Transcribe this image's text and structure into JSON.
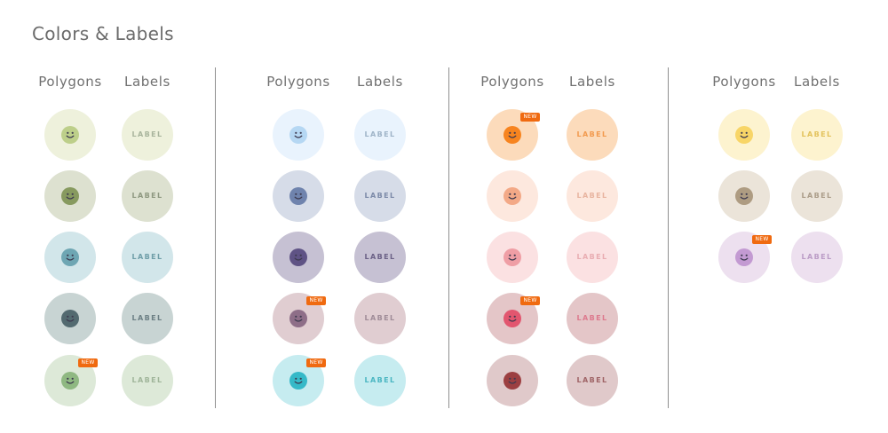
{
  "header": {
    "title": "Colors & Labels"
  },
  "headings": {
    "polygons": "Polygons",
    "labels": "Labels"
  },
  "label_text": "LABEL",
  "badge_text": "NEW",
  "icon": "smiley-face-icon",
  "groups": [
    {
      "rows": [
        {
          "bg": "#eef1dc",
          "fg": "#bdcf8a",
          "label_color": "#a8b49c",
          "new": false
        },
        {
          "bg": "#dde1d0",
          "fg": "#879a5f",
          "label_color": "#8e9880",
          "new": false
        },
        {
          "bg": "#d2e6ea",
          "fg": "#6ea6b3",
          "label_color": "#6f9ea8",
          "new": false
        },
        {
          "bg": "#c8d4d3",
          "fg": "#536a70",
          "label_color": "#6c7f84",
          "new": false
        },
        {
          "bg": "#dde9d8",
          "fg": "#8fb882",
          "label_color": "#a0b59a",
          "new": true
        }
      ]
    },
    {
      "rows": [
        {
          "bg": "#e9f3fd",
          "fg": "#b5d7f3",
          "label_color": "#9fb4c8",
          "new": false
        },
        {
          "bg": "#d6dce8",
          "fg": "#6f83ad",
          "label_color": "#7c8aa8",
          "new": false
        },
        {
          "bg": "#c6c1d3",
          "fg": "#5f5385",
          "label_color": "#6b6186",
          "new": false
        },
        {
          "bg": "#e0cdd1",
          "fg": "#8e6e88",
          "label_color": "#a08c98",
          "new": true
        },
        {
          "bg": "#c6ecf0",
          "fg": "#35b9c8",
          "label_color": "#4bb6c2",
          "new": true
        }
      ]
    },
    {
      "rows": [
        {
          "bg": "#fcdbbb",
          "fg": "#f7841f",
          "label_color": "#f29a4e",
          "new": true
        },
        {
          "bg": "#fde8de",
          "fg": "#f3a987",
          "label_color": "#e8b4a0",
          "new": false
        },
        {
          "bg": "#fbe1e2",
          "fg": "#ef9ea5",
          "label_color": "#e9adb2",
          "new": false
        },
        {
          "bg": "#e4c6c8",
          "fg": "#e2566f",
          "label_color": "#dd7a8e",
          "new": true
        },
        {
          "bg": "#e0c9ca",
          "fg": "#9c3f41",
          "label_color": "#9f6466",
          "new": false
        }
      ]
    },
    {
      "rows": [
        {
          "bg": "#fdf3cf",
          "fg": "#f8d567",
          "label_color": "#e3c25c",
          "new": false
        },
        {
          "bg": "#ebe4d9",
          "fg": "#ae9c82",
          "label_color": "#ab9d89",
          "new": false
        },
        {
          "bg": "#ede0ef",
          "fg": "#c39ad2",
          "label_color": "#bb9cc6",
          "new": true
        }
      ]
    }
  ]
}
